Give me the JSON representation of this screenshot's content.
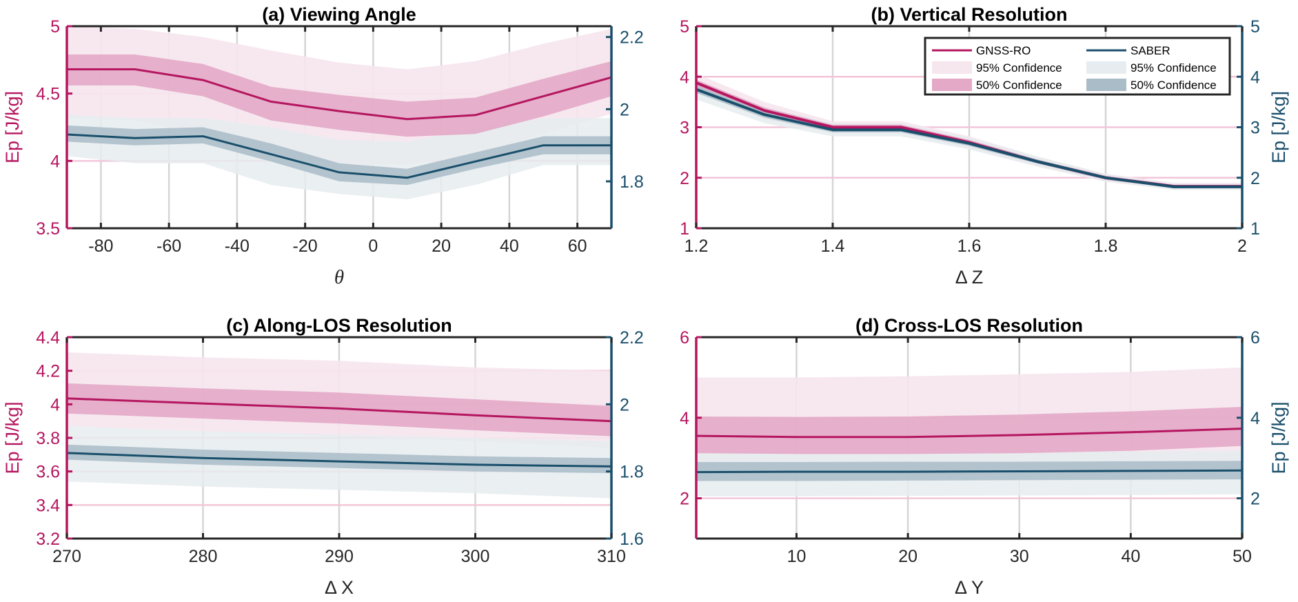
{
  "colors": {
    "gnss_line": "#b5165f",
    "gnss_50": "#e3a9c6",
    "gnss_95": "#f6e6ee",
    "saber_line": "#1a4f6b",
    "saber_50": "#a9bcc8",
    "saber_95": "#e6ecef",
    "grid": "#c8c8c8",
    "axis": "#262626"
  },
  "legend": {
    "items": [
      {
        "label": "GNSS-RO",
        "kind": "line",
        "series": "gnss"
      },
      {
        "label": "SABER",
        "kind": "line",
        "series": "saber"
      },
      {
        "label": "95% Confidence",
        "kind": "band95",
        "series": "gnss"
      },
      {
        "label": "95% Confidence",
        "kind": "band95",
        "series": "saber"
      },
      {
        "label": "50% Confidence",
        "kind": "band50",
        "series": "gnss"
      },
      {
        "label": "50% Confidence",
        "kind": "band50",
        "series": "saber"
      }
    ],
    "placement": "top-right of panel (b)"
  },
  "chart_data": [
    {
      "id": "a",
      "type": "area",
      "title": "(a) Viewing Angle",
      "xlabel": "θ",
      "ylabel_left": "Ep [J/kg]",
      "ylabel_right": "",
      "xlim": [
        -90,
        70
      ],
      "xticks": [
        -80,
        -60,
        -40,
        -20,
        0,
        20,
        40,
        60
      ],
      "ylim_left": [
        3.5,
        5
      ],
      "yticks_left": [
        "3.5",
        "4",
        "4.5",
        "5"
      ],
      "ylim_right": [
        1.67,
        2.23
      ],
      "yticks_right": [
        "1.8",
        "2",
        "2.2"
      ],
      "grid": "x-major grey, y-major light pink",
      "x": [
        -90,
        -70,
        -50,
        -30,
        -10,
        10,
        30,
        50,
        70
      ],
      "series": [
        {
          "name": "GNSS-RO",
          "axis": "left",
          "median": [
            4.68,
            4.68,
            4.6,
            4.44,
            4.37,
            4.31,
            4.34,
            4.48,
            4.62
          ],
          "q25": [
            4.56,
            4.56,
            4.48,
            4.3,
            4.23,
            4.18,
            4.2,
            4.33,
            4.48
          ],
          "q75": [
            4.79,
            4.79,
            4.72,
            4.55,
            4.49,
            4.44,
            4.47,
            4.61,
            4.74
          ],
          "p2_5": [
            4.32,
            4.3,
            4.2,
            4.02,
            3.98,
            3.97,
            4.05,
            4.2,
            4.35
          ],
          "p97_5": [
            5.0,
            4.98,
            4.92,
            4.82,
            4.73,
            4.68,
            4.74,
            4.87,
            4.98
          ]
        },
        {
          "name": "SABER",
          "axis": "right",
          "median": [
            1.93,
            1.92,
            1.925,
            1.875,
            1.825,
            1.81,
            1.855,
            1.9,
            1.9
          ],
          "q25": [
            1.91,
            1.9,
            1.905,
            1.855,
            1.8,
            1.79,
            1.835,
            1.875,
            1.875
          ],
          "q75": [
            1.955,
            1.945,
            1.95,
            1.905,
            1.85,
            1.835,
            1.88,
            1.925,
            1.925
          ],
          "p2_5": [
            1.87,
            1.85,
            1.85,
            1.79,
            1.765,
            1.75,
            1.79,
            1.845,
            1.845
          ],
          "p97_5": [
            1.985,
            1.975,
            1.975,
            1.95,
            1.915,
            1.91,
            1.945,
            1.975,
            1.975
          ]
        }
      ]
    },
    {
      "id": "b",
      "type": "area",
      "title": "(b) Vertical Resolution",
      "xlabel": "Δ Z",
      "ylabel_left": "",
      "ylabel_right": "Ep [J/kg]",
      "xlim": [
        1.2,
        2.0
      ],
      "xticks": [
        "1.2",
        "1.4",
        "1.6",
        "1.8",
        "2"
      ],
      "ylim_left": [
        1,
        5
      ],
      "yticks_left": [
        "1",
        "2",
        "3",
        "4",
        "5"
      ],
      "ylim_right": [
        1,
        5
      ],
      "yticks_right": [
        "1",
        "2",
        "3",
        "4",
        "5"
      ],
      "grid": "x-major grey, y-major light pink",
      "x": [
        1.2,
        1.3,
        1.4,
        1.5,
        1.6,
        1.7,
        1.8,
        1.9,
        2.0
      ],
      "series": [
        {
          "name": "GNSS-RO",
          "axis": "left",
          "median": [
            3.88,
            3.33,
            3.0,
            3.0,
            2.7,
            2.32,
            2.0,
            1.83,
            1.83
          ],
          "q25": [
            3.82,
            3.27,
            2.95,
            2.95,
            2.65,
            2.28,
            1.96,
            1.8,
            1.8
          ],
          "q75": [
            3.94,
            3.39,
            3.05,
            3.05,
            2.75,
            2.36,
            2.04,
            1.86,
            1.86
          ],
          "p2_5": [
            3.7,
            3.15,
            2.88,
            2.88,
            2.58,
            2.22,
            1.92,
            1.76,
            1.76
          ],
          "p97_5": [
            4.06,
            3.5,
            3.12,
            3.12,
            2.82,
            2.42,
            2.08,
            1.9,
            1.9
          ]
        },
        {
          "name": "SABER",
          "axis": "right",
          "median": [
            3.75,
            3.25,
            2.95,
            2.95,
            2.68,
            2.32,
            2.0,
            1.82,
            1.82
          ],
          "q25": [
            3.68,
            3.19,
            2.9,
            2.9,
            2.63,
            2.28,
            1.97,
            1.79,
            1.79
          ],
          "q75": [
            3.82,
            3.31,
            3.0,
            3.0,
            2.73,
            2.36,
            2.03,
            1.85,
            1.85
          ],
          "p2_5": [
            3.55,
            3.08,
            2.82,
            2.82,
            2.56,
            2.22,
            1.93,
            1.76,
            1.76
          ],
          "p97_5": [
            3.92,
            3.4,
            3.08,
            3.08,
            2.8,
            2.42,
            2.07,
            1.88,
            1.88
          ]
        }
      ]
    },
    {
      "id": "c",
      "type": "area",
      "title": "(c) Along-LOS Resolution",
      "xlabel": "Δ X",
      "ylabel_left": "Ep [J/kg]",
      "ylabel_right": "",
      "xlim": [
        270,
        310
      ],
      "xticks": [
        270,
        280,
        290,
        300,
        310
      ],
      "ylim_left": [
        3.2,
        4.4
      ],
      "yticks_left": [
        "3.2",
        "3.4",
        "3.6",
        "3.8",
        "4",
        "4.2",
        "4.4"
      ],
      "ylim_right": [
        1.6,
        2.2
      ],
      "yticks_right": [
        "1.6",
        "1.8",
        "2",
        "2.2"
      ],
      "grid": "x-major grey, y-major light pink",
      "x": [
        270,
        280,
        290,
        300,
        310
      ],
      "series": [
        {
          "name": "GNSS-RO",
          "axis": "left",
          "median": [
            4.035,
            4.005,
            3.975,
            3.935,
            3.9
          ],
          "q25": [
            3.945,
            3.915,
            3.885,
            3.845,
            3.81
          ],
          "q75": [
            4.125,
            4.095,
            4.07,
            4.03,
            3.99
          ],
          "p2_5": [
            3.87,
            3.84,
            3.81,
            3.78,
            3.74
          ],
          "p97_5": [
            4.31,
            4.28,
            4.26,
            4.22,
            4.2
          ]
        },
        {
          "name": "SABER",
          "axis": "right",
          "median": [
            1.855,
            1.84,
            1.83,
            1.82,
            1.815
          ],
          "q25": [
            1.835,
            1.82,
            1.81,
            1.8,
            1.795
          ],
          "q75": [
            1.88,
            1.865,
            1.855,
            1.845,
            1.84
          ],
          "p2_5": [
            1.77,
            1.755,
            1.745,
            1.735,
            1.72
          ],
          "p97_5": [
            1.935,
            1.92,
            1.91,
            1.9,
            1.89
          ]
        }
      ]
    },
    {
      "id": "d",
      "type": "area",
      "title": "(d) Cross-LOS Resolution",
      "xlabel": "Δ Y",
      "ylabel_left": "",
      "ylabel_right": "Ep [J/kg]",
      "xlim": [
        1,
        50
      ],
      "xticks": [
        10,
        20,
        30,
        40,
        50
      ],
      "ylim_left": [
        1,
        6
      ],
      "yticks_left": [
        "2",
        "4",
        "6"
      ],
      "ylim_right": [
        1,
        6
      ],
      "yticks_right": [
        "2",
        "4",
        "6"
      ],
      "grid": "x-major grey, y-major light pink",
      "x": [
        1,
        10,
        20,
        30,
        40,
        50
      ],
      "series": [
        {
          "name": "GNSS-RO",
          "axis": "left",
          "median": [
            3.55,
            3.52,
            3.52,
            3.57,
            3.64,
            3.73
          ],
          "q25": [
            3.12,
            3.1,
            3.1,
            3.12,
            3.18,
            3.3
          ],
          "q75": [
            4.03,
            4.02,
            4.03,
            4.08,
            4.16,
            4.27
          ],
          "p2_5": [
            2.62,
            2.6,
            2.6,
            2.62,
            2.65,
            2.7
          ],
          "p97_5": [
            5.0,
            5.0,
            5.03,
            5.08,
            5.14,
            5.25
          ]
        },
        {
          "name": "SABER",
          "axis": "right",
          "median": [
            2.65,
            2.66,
            2.66,
            2.67,
            2.68,
            2.69
          ],
          "q25": [
            2.43,
            2.43,
            2.44,
            2.45,
            2.46,
            2.47
          ],
          "q75": [
            2.9,
            2.9,
            2.91,
            2.91,
            2.92,
            2.93
          ],
          "p2_5": [
            2.05,
            2.05,
            2.06,
            2.07,
            2.08,
            2.1
          ],
          "p97_5": [
            3.13,
            3.13,
            3.14,
            3.15,
            3.16,
            3.18
          ]
        }
      ]
    }
  ]
}
